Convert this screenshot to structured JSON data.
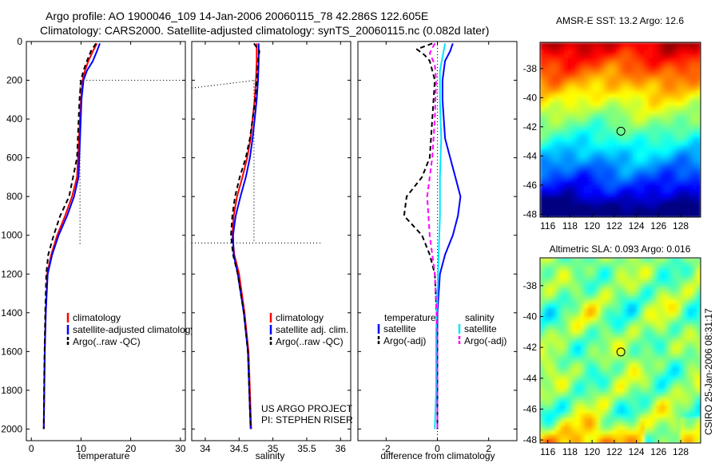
{
  "header": {
    "line1": "Argo profile: AO 1900046_109 14-Jan-2006 20060115_78 42.286S 122.605E",
    "line2": "Climatology: CARS2000. Satellite-adjusted climatology: synTS_20060115.nc (0.082d later)"
  },
  "side_label": "CSIRO 25-Jan-2006 08:31:17",
  "project": {
    "line1": "US ARGO PROJECT",
    "line2": "PI: STEPHEN RISER"
  },
  "colors": {
    "red": "#ff0000",
    "blue": "#0000ff",
    "black": "#000000",
    "cyan": "#00e5ff",
    "magenta": "#ff00ff"
  },
  "chart_data": [
    {
      "type": "line",
      "xlabel": "temperature",
      "xlim": [
        -1,
        31
      ],
      "ylim": [
        2060,
        0
      ],
      "xticks": [
        0,
        10,
        20,
        30
      ],
      "yticks": [
        0,
        200,
        400,
        600,
        800,
        1000,
        1200,
        1400,
        1600,
        1800,
        2000
      ],
      "legend_placement": "lower-left",
      "legend": [
        "climatology",
        "satellite-adjusted climatology",
        "Argo(..raw -QC)"
      ],
      "series": [
        {
          "name": "climatology",
          "color": "red",
          "dash": "solid",
          "x": [
            13.2,
            12.4,
            11.5,
            10.8,
            10.3,
            10.0,
            9.6,
            9.2,
            8.2,
            6.8,
            5.2,
            4.0,
            3.2,
            2.9,
            2.7,
            2.6,
            2.5
          ],
          "y": [
            10,
            50,
            100,
            150,
            200,
            300,
            500,
            700,
            800,
            900,
            1000,
            1100,
            1200,
            1400,
            1600,
            1800,
            2000
          ]
        },
        {
          "name": "satellite-adjusted climatology",
          "color": "blue",
          "dash": "solid",
          "x": [
            13.8,
            13.2,
            12.4,
            11.2,
            10.5,
            10.1,
            9.8,
            9.5,
            8.6,
            7.2,
            5.5,
            4.2,
            3.3,
            2.9,
            2.7,
            2.6,
            2.5
          ],
          "y": [
            10,
            50,
            100,
            150,
            200,
            300,
            500,
            700,
            800,
            900,
            1000,
            1100,
            1200,
            1400,
            1600,
            1800,
            2000
          ]
        },
        {
          "name": "Argo(..raw -QC)",
          "color": "black",
          "dash": "dashed",
          "x": [
            13.0,
            12.0,
            11.2,
            10.5,
            10.0,
            9.7,
            9.2,
            7.6,
            5.8,
            4.5,
            3.4,
            3.0,
            2.8,
            2.6,
            2.5
          ],
          "y": [
            10,
            50,
            100,
            150,
            200,
            300,
            600,
            800,
            900,
            1000,
            1100,
            1200,
            1400,
            1700,
            2000
          ]
        }
      ],
      "qc_marks": [
        {
          "x": [
            9.8,
            31
          ],
          "y": [
            200,
            200
          ]
        },
        {
          "x": [
            9.8,
            9.8
          ],
          "y": [
            200,
            1050
          ]
        }
      ]
    },
    {
      "type": "line",
      "xlabel": "salinity",
      "xlim": [
        33.8,
        36.15
      ],
      "ylim": [
        2060,
        0
      ],
      "xticks": [
        34,
        34.5,
        35,
        35.5,
        36
      ],
      "yticks": [],
      "legend_placement": "lower-right",
      "legend": [
        "climatology",
        "satellite adj. clim.",
        "Argo(..raw -QC)"
      ],
      "series": [
        {
          "name": "climatology",
          "color": "red",
          "dash": "solid",
          "x": [
            34.76,
            34.76,
            34.75,
            34.73,
            34.7,
            34.67,
            34.62,
            34.55,
            34.47,
            34.42,
            34.4,
            34.43,
            34.5,
            34.58,
            34.64,
            34.68
          ],
          "y": [
            10,
            100,
            200,
            300,
            400,
            500,
            600,
            700,
            800,
            900,
            1000,
            1100,
            1200,
            1400,
            1600,
            2000
          ]
        },
        {
          "name": "satellite adj. clim.",
          "color": "blue",
          "dash": "solid",
          "x": [
            34.79,
            34.79,
            34.78,
            34.76,
            34.73,
            34.7,
            34.66,
            34.6,
            34.52,
            34.45,
            34.41,
            34.42,
            34.48,
            34.57,
            34.63,
            34.67
          ],
          "y": [
            10,
            100,
            200,
            300,
            400,
            500,
            600,
            700,
            800,
            900,
            1000,
            1100,
            1200,
            1400,
            1600,
            2000
          ]
        },
        {
          "name": "Argo(..raw -QC)",
          "color": "black",
          "dash": "dashed",
          "x": [
            34.72,
            34.8,
            34.78,
            34.74,
            34.7,
            34.66,
            34.6,
            34.51,
            34.44,
            34.4,
            34.38,
            34.41,
            34.48,
            34.57,
            34.63,
            34.67
          ],
          "y": [
            10,
            50,
            100,
            300,
            400,
            500,
            600,
            700,
            800,
            900,
            1000,
            1100,
            1200,
            1400,
            1600,
            2000
          ]
        }
      ],
      "qc_marks": [
        {
          "x": [
            33.8,
            34.75
          ],
          "y": [
            240,
            200
          ]
        },
        {
          "x": [
            34.72,
            34.72
          ],
          "y": [
            200,
            1040
          ]
        },
        {
          "x": [
            33.8,
            35.7
          ],
          "y": [
            1040,
            1040
          ]
        }
      ]
    },
    {
      "type": "line",
      "xlabel": "difference from climatology",
      "xlim": [
        -3.1,
        3.1
      ],
      "ylim": [
        2060,
        0
      ],
      "xticks": [
        -2,
        0,
        2
      ],
      "yticks": [],
      "legend_placement": "lower-left and lower-right",
      "legend_titles": [
        "temperature",
        "salinity"
      ],
      "legend": [
        "satellite",
        "Argo(-adj)",
        "satellite",
        "Argo(-adj)"
      ],
      "series": [
        {
          "name": "satellite",
          "group": "temperature",
          "color": "blue",
          "dash": "solid",
          "x": [
            0.6,
            0.5,
            0.3,
            0.2,
            0.2,
            0.3,
            0.5,
            0.7,
            0.9,
            0.8,
            0.6,
            0.3,
            0.1,
            0.0,
            0.0,
            0.0
          ],
          "y": [
            10,
            50,
            100,
            200,
            300,
            500,
            600,
            700,
            800,
            900,
            1000,
            1100,
            1200,
            1400,
            1600,
            2000
          ]
        },
        {
          "name": "Argo(-adj)",
          "group": "temperature",
          "color": "black",
          "dash": "dashed",
          "x": [
            -0.2,
            -0.8,
            -0.5,
            -0.3,
            -0.1,
            -0.2,
            -0.3,
            -0.6,
            -1.2,
            -1.3,
            -0.6,
            -0.3,
            -0.1,
            0.0,
            0.0
          ],
          "y": [
            10,
            40,
            70,
            100,
            200,
            400,
            600,
            700,
            800,
            900,
            1000,
            1100,
            1200,
            1500,
            2000
          ]
        },
        {
          "name": "satellite",
          "group": "salinity",
          "color": "cyan",
          "dash": "solid",
          "x": [
            0.3,
            0.2,
            0.1,
            0.1,
            0.15,
            0.1,
            0.1,
            0.05,
            0.0,
            -0.05,
            -0.05,
            -0.1
          ],
          "y": [
            10,
            80,
            150,
            300,
            500,
            700,
            900,
            1100,
            1300,
            1500,
            1800,
            2000
          ]
        },
        {
          "name": "Argo(-adj)",
          "group": "salinity",
          "color": "magenta",
          "dash": "dashed",
          "x": [
            -0.1,
            -0.3,
            -0.1,
            -0.05,
            -0.1,
            -0.2,
            -0.4,
            -0.3,
            -0.1,
            0.0,
            0.0
          ],
          "y": [
            10,
            60,
            120,
            200,
            400,
            600,
            800,
            1000,
            1200,
            1500,
            2000
          ]
        }
      ]
    },
    {
      "type": "heatmap",
      "title": "AMSR-E SST: 13.2 Argo: 12.6",
      "xticks": [
        116,
        118,
        120,
        122,
        124,
        126,
        128
      ],
      "yticks": [
        -38,
        -40,
        -42,
        -44,
        -46,
        -48
      ],
      "xlim": [
        115.3,
        129.8
      ],
      "ylim": [
        -48.2,
        -36.2
      ],
      "marker": {
        "lon": 122.6,
        "lat": -42.3
      }
    },
    {
      "type": "heatmap",
      "title": "Altimetric SLA: 0.093 Argo: 0.016",
      "xticks": [
        116,
        118,
        120,
        122,
        124,
        126,
        128
      ],
      "yticks": [
        -38,
        -40,
        -42,
        -44,
        -46,
        -48
      ],
      "xlim": [
        115.3,
        129.8
      ],
      "ylim": [
        -48.2,
        -36.2
      ],
      "marker": {
        "lon": 122.6,
        "lat": -42.3
      }
    }
  ]
}
